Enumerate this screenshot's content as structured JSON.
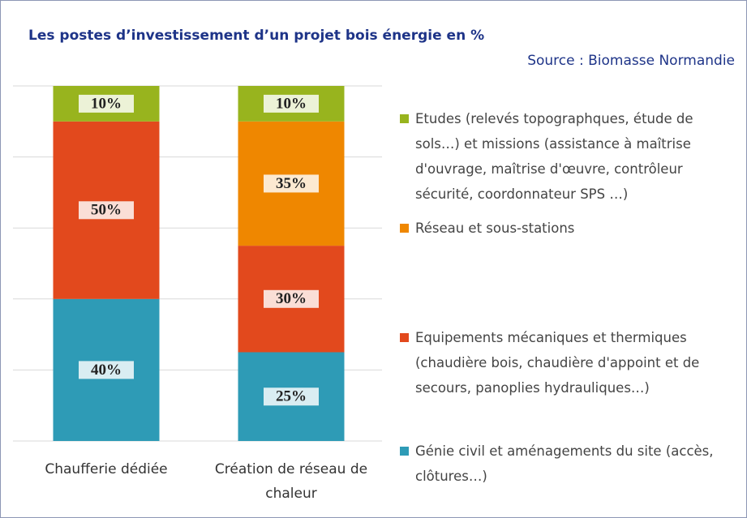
{
  "chart_data": {
    "type": "stacked_bar",
    "title": "Les postes d’investissement d’un projet bois énergie en %",
    "subtitle": "Source : Biomasse Normandie",
    "categories": [
      "Chaufferie dédiée",
      "Création de réseau de chaleur"
    ],
    "series": [
      {
        "name": "Etudes (relevés topographques, étude de sols…) et missions (assistance à maîtrise d'ouvrage, maîtrise d'œuvre, contrôleur sécurité, coordonnateur SPS …)",
        "color": "#98b41e",
        "values": [
          10,
          10
        ],
        "value_labels": [
          "10%",
          "10%"
        ]
      },
      {
        "name": "Réseau et sous-stations",
        "color": "#ef8700",
        "values": [
          0,
          35
        ],
        "value_labels": [
          null,
          "35%"
        ]
      },
      {
        "name": "Equipements mécaniques et thermiques (chaudière bois, chaudière d'appoint et de secours, panoplies hydrauliques…)",
        "color": "#e2491d",
        "values": [
          50,
          30
        ],
        "value_labels": [
          "50%",
          "30%"
        ]
      },
      {
        "name": "Génie civil et aménagements du site (accès, clôtures…)",
        "color": "#2e9bb6",
        "values": [
          40,
          25
        ],
        "value_labels": [
          "40%",
          "25%"
        ]
      }
    ],
    "ylim": [
      0,
      100
    ],
    "yticks": [
      0,
      20,
      40,
      60,
      80,
      100
    ],
    "grid": true
  }
}
